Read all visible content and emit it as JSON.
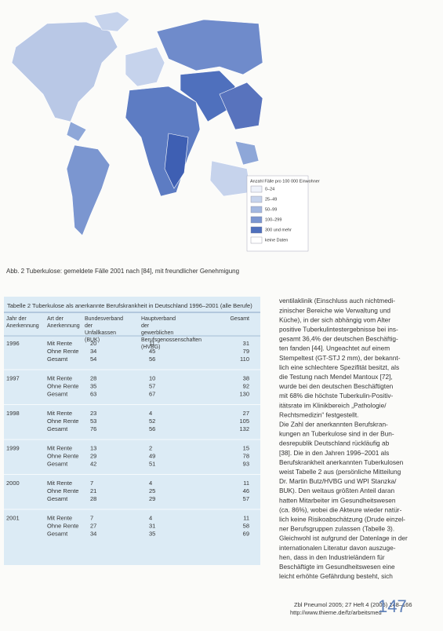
{
  "figure": {
    "legend_title": "Anzahl Fälle pro 100 000 Einwohner",
    "legend_items": [
      "0–24",
      "25–49",
      "50–99",
      "100–299",
      "300 und mehr",
      "keine Daten"
    ],
    "caption": "Abb. 2 Tuberkulose: gemeldete Fälle 2001 nach [84], mit freundlicher Genehmigung"
  },
  "table": {
    "title": "Tabelle 2 Tuberkulose als anerkannte Berufskrankheit in Deutschland 1996–2001 (alle Berufe)",
    "headers": [
      "Jahr der Anerkennung",
      "Art der Anerkennung",
      "Bundesverband der Unfallkassen (BUK)",
      "Hauptverband der gewerblichen Berufsgenossenschaften (HVBG)",
      "Gesamt"
    ],
    "blocks": [
      {
        "year": "1996",
        "rows": [
          [
            "Mit Rente",
            20,
            11,
            31
          ],
          [
            "Ohne Rente",
            34,
            45,
            79
          ],
          [
            "Gesamt",
            54,
            56,
            110
          ]
        ]
      },
      {
        "year": "1997",
        "rows": [
          [
            "Mit Rente",
            28,
            10,
            38
          ],
          [
            "Ohne Rente",
            35,
            57,
            92
          ],
          [
            "Gesamt",
            63,
            67,
            130
          ]
        ]
      },
      {
        "year": "1998",
        "rows": [
          [
            "Mit Rente",
            23,
            4,
            27
          ],
          [
            "Ohne Rente",
            53,
            52,
            105
          ],
          [
            "Gesamt",
            76,
            56,
            132
          ]
        ]
      },
      {
        "year": "1999",
        "rows": [
          [
            "Mit Rente",
            13,
            2,
            15
          ],
          [
            "Ohne Rente",
            29,
            49,
            78
          ],
          [
            "Gesamt",
            42,
            51,
            93
          ]
        ]
      },
      {
        "year": "2000",
        "rows": [
          [
            "Mit Rente",
            7,
            4,
            11
          ],
          [
            "Ohne Rente",
            21,
            25,
            46
          ],
          [
            "Gesamt",
            28,
            29,
            57
          ]
        ]
      },
      {
        "year": "2001",
        "rows": [
          [
            "Mit Rente",
            7,
            4,
            11
          ],
          [
            "Ohne Rente",
            27,
            31,
            58
          ],
          [
            "Gesamt",
            34,
            35,
            69
          ]
        ]
      }
    ]
  },
  "body_lines": [
    "ventilaklinik (Einschluss auch nichtmedi-",
    "zinischer Bereiche wie Verwaltung und",
    "Küche), in der sich abhängig vom Alter",
    "positive Tuberkulintestergebnisse bei ins-",
    "gesamt 36,4% der deutschen Beschäftig-",
    "ten fanden [44]. Ungeachtet auf einem",
    "Stempeltest (GT-STJ 2 mm), der bekannt-",
    "lich eine schlechtere Spezifität besitzt, als",
    "die Testung nach Mendel Mantoux [72],",
    "wurde bei den deutschen Beschäftigten",
    "mit 68% die höchste Tuberkulin-Positiv-",
    "itätsrate im Klinikbereich „Pathologie/",
    "Rechtsmedizin“ festgestellt.",
    "Die Zahl der anerkannten Berufskran-",
    "kungen an Tuberkulose sind in der Bun-",
    "desrepublik Deutschland rückläufig ab",
    "[38]. Die in den Jahren 1996–2001 als",
    "Berufskrankheit anerkannten Tuberkulosen",
    "weist Tabelle 2 aus (persönliche Mitteilung",
    "Dr. Martin Butz/HVBG und WPI Stanzka/",
    "BUK). Den weitaus größten Anteil daran",
    "hatten Mitarbeiter im Gesundheitswesen",
    "(ca. 86%), wobei die Akteure wieder natür-",
    "lich keine Risikoabschätzung (Drude einzel-",
    "ner Berufsgruppen zulassen (Tabelle 3).",
    "Gleichwohl ist aufgrund der Datenlage in der",
    "internationalen Literatur davon auszuge-",
    "hen, dass in den Industrieländern für",
    "Beschäftigte im Gesundheitswesen eine",
    "leicht erhöhte Gefährdung besteht, sich"
  ],
  "footer": {
    "citation": "Zbl Pneumol 2005; 27 Heft 4 (2005) 148–166",
    "url": "http://www.thieme.de/fz/arbeitsmed",
    "page_number": "147"
  }
}
